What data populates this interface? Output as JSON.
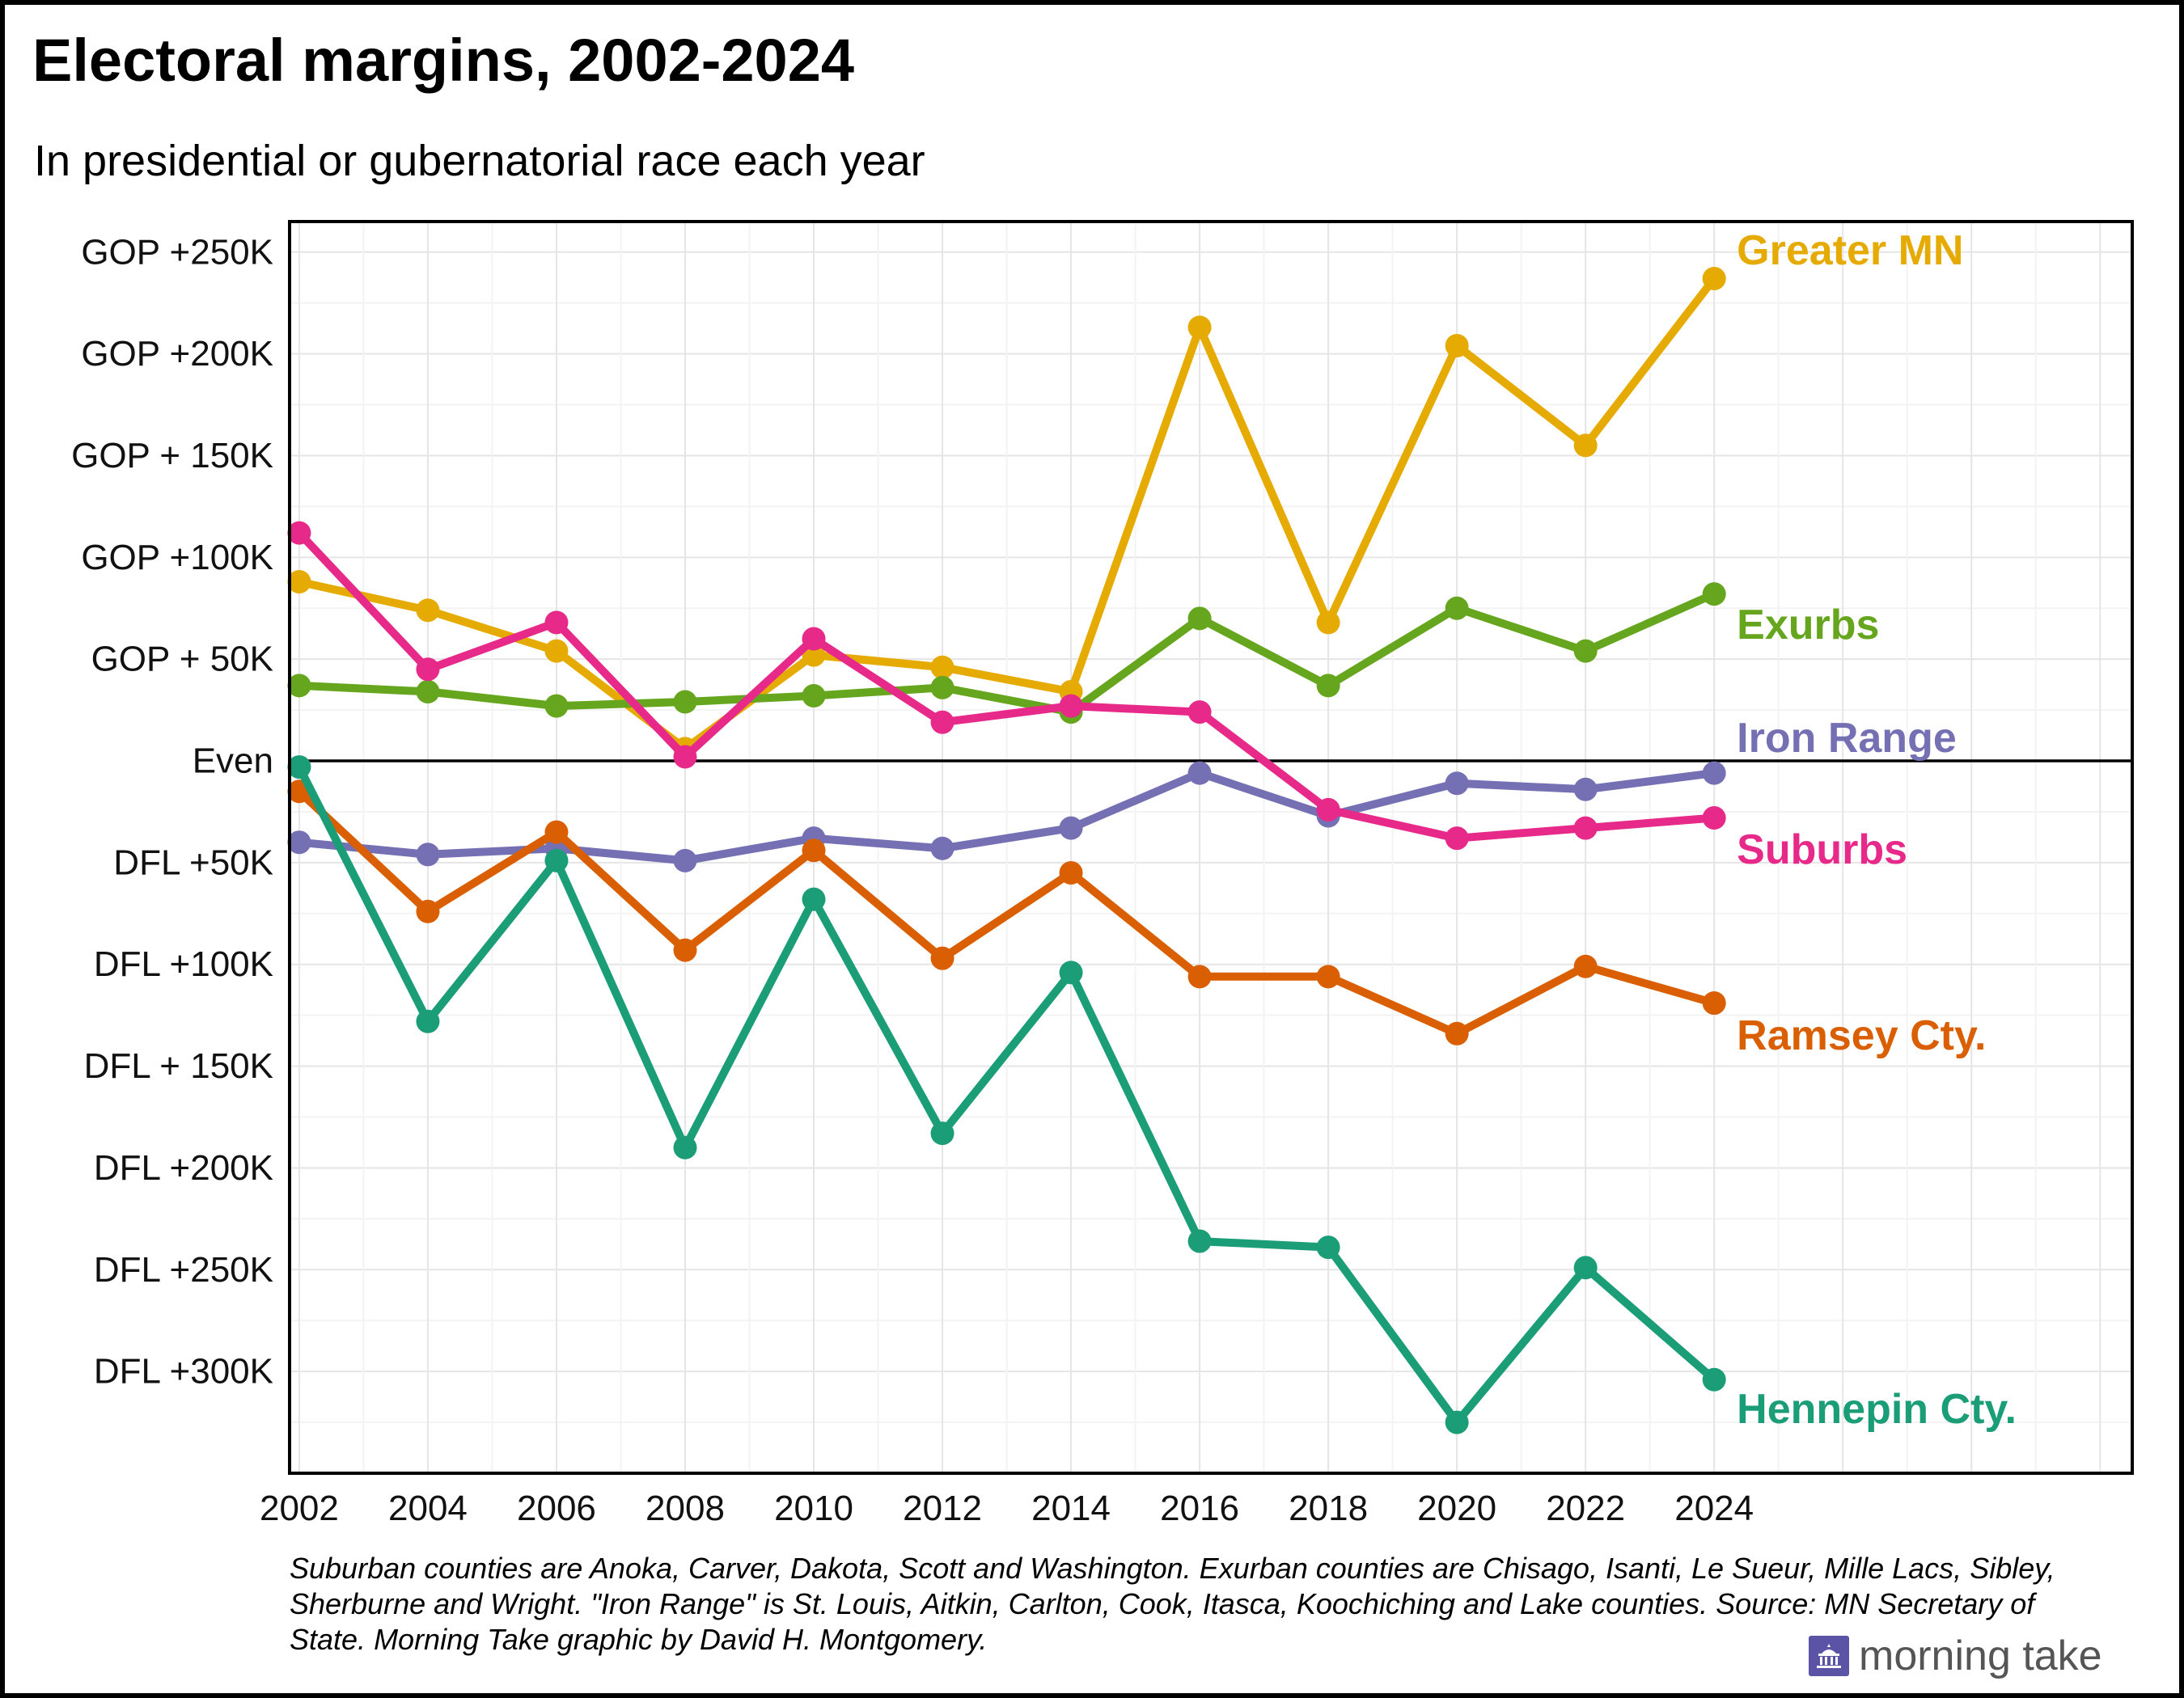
{
  "title": "Electoral margins, 2002-2024",
  "subtitle": "In presidential or gubernatorial race each year",
  "footnote": "Suburban counties are Anoka, Carver, Dakota, Scott and Washington. Exurban counties are Chisago, Isanti, Le Sueur, Mille Lacs, Sibley, Sherburne and Wright. \"Iron Range\" is St. Louis, Aitkin, Carlton, Cook, Itasca, Koochiching and Lake counties. Source: MN Secretary of State. Morning Take graphic by David H. Montgomery.",
  "brand": {
    "name": "morning take",
    "logo_icon": "capitol-building-icon"
  },
  "chart_data": {
    "type": "line",
    "title": "Electoral margins, 2002-2024",
    "subtitle": "In presidential or gubernatorial race each year",
    "xlabel": "",
    "ylabel": "",
    "x": [
      2002,
      2004,
      2006,
      2008,
      2010,
      2012,
      2014,
      2016,
      2018,
      2020,
      2022,
      2024
    ],
    "x_tick_labels": [
      "2002",
      "2004",
      "2006",
      "2008",
      "2010",
      "2012",
      "2014",
      "2016",
      "2018",
      "2020",
      "2022",
      "2024"
    ],
    "xlim": [
      2001.85,
      2030.5
    ],
    "ylim": [
      -350000,
      265000
    ],
    "y_ticks": [
      {
        "value": 250000,
        "label": "GOP +250K"
      },
      {
        "value": 200000,
        "label": "GOP +200K"
      },
      {
        "value": 150000,
        "label": "GOP + 150K"
      },
      {
        "value": 100000,
        "label": "GOP +100K"
      },
      {
        "value": 50000,
        "label": "GOP + 50K"
      },
      {
        "value": 0,
        "label": "Even"
      },
      {
        "value": -50000,
        "label": "DFL +50K"
      },
      {
        "value": -100000,
        "label": "DFL +100K"
      },
      {
        "value": -150000,
        "label": "DFL + 150K"
      },
      {
        "value": -200000,
        "label": "DFL +200K"
      },
      {
        "value": -250000,
        "label": "DFL +250K"
      },
      {
        "value": -300000,
        "label": "DFL +300K"
      }
    ],
    "sign_convention": "positive = GOP margin, negative = DFL margin",
    "grid": true,
    "legend": "direct labels at right end of each line",
    "series": [
      {
        "name": "Greater MN",
        "color": "#e6ab02",
        "values": [
          88000,
          74000,
          54000,
          6000,
          52000,
          46000,
          34000,
          213000,
          68000,
          204000,
          155000,
          237000
        ]
      },
      {
        "name": "Exurbs",
        "color": "#66a61e",
        "values": [
          37000,
          34000,
          27000,
          29000,
          32000,
          36000,
          24000,
          70000,
          37000,
          75000,
          54000,
          82000
        ]
      },
      {
        "name": "Iron Range",
        "color": "#7570b3",
        "values": [
          -40000,
          -46000,
          -43000,
          -49000,
          -38000,
          -43000,
          -33000,
          -6000,
          -27000,
          -11000,
          -14000,
          -6000
        ]
      },
      {
        "name": "Suburbs",
        "color": "#e7298a",
        "values": [
          112000,
          45000,
          68000,
          2000,
          60000,
          19000,
          27000,
          24000,
          -24000,
          -38000,
          -33000,
          -28000
        ]
      },
      {
        "name": "Ramsey Cty.",
        "color": "#d95f02",
        "values": [
          -15000,
          -74000,
          -35000,
          -93000,
          -44000,
          -97000,
          -55000,
          -106000,
          -106000,
          -134000,
          -101000,
          -119000
        ]
      },
      {
        "name": "Hennepin Cty.",
        "color": "#1b9e77",
        "values": [
          -3000,
          -128000,
          -49000,
          -190000,
          -68000,
          -183000,
          -104000,
          -236000,
          -239000,
          -325000,
          -249000,
          -304000
        ]
      }
    ]
  }
}
